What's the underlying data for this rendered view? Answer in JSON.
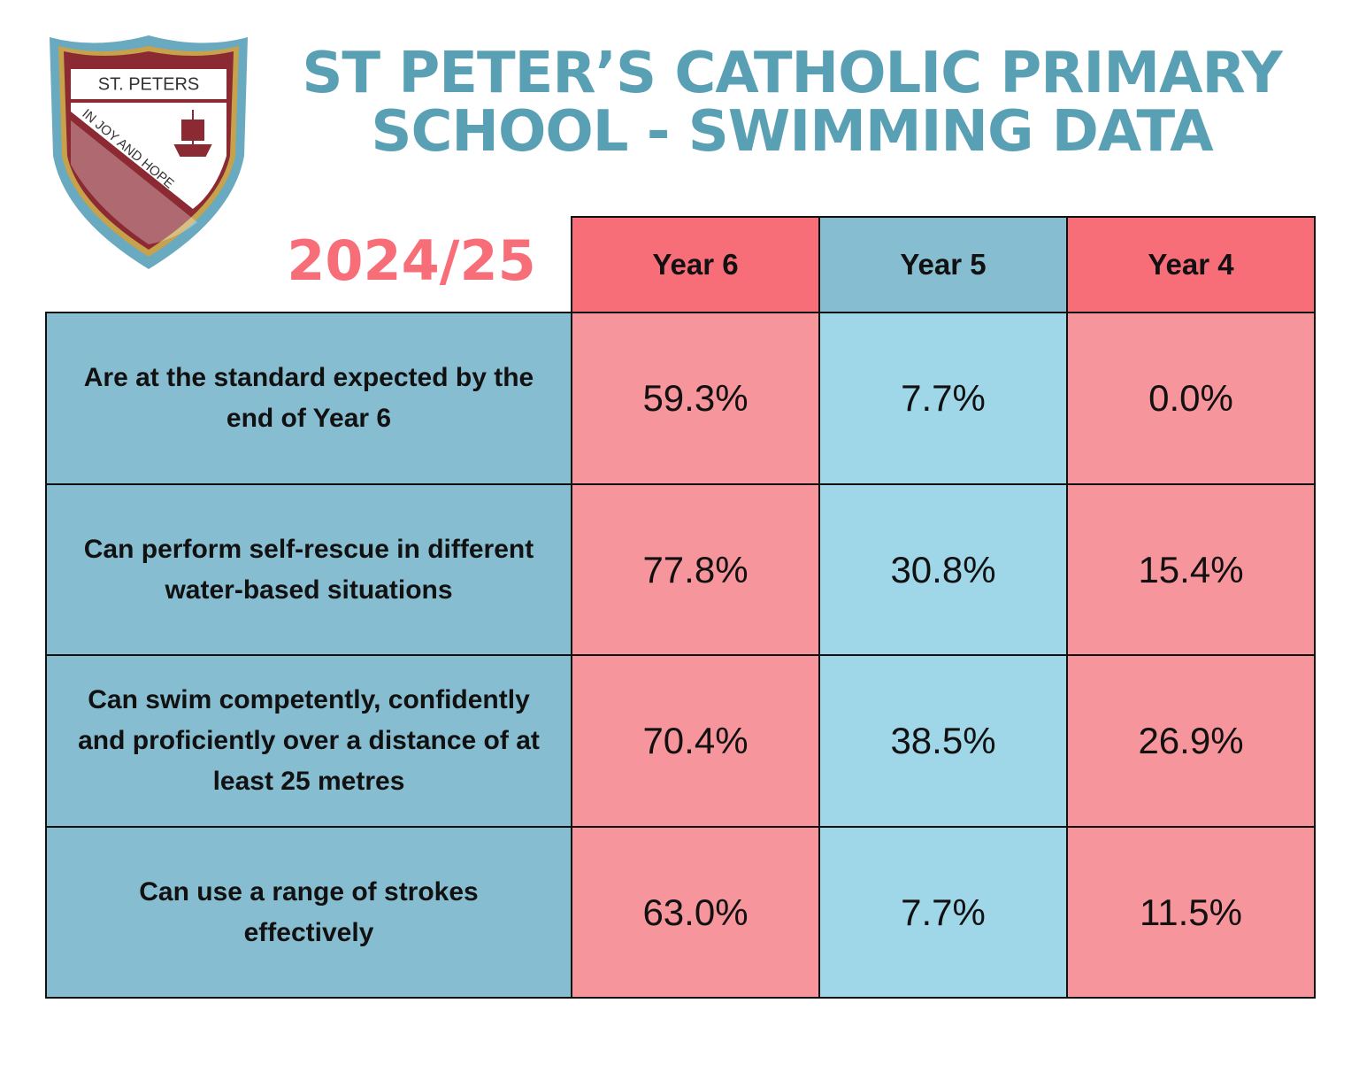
{
  "header": {
    "title_lines": [
      "ST PETER’S CATHOLIC PRIMARY",
      "SCHOOL - SWIMMING DATA"
    ],
    "year": "2024/25"
  },
  "logo": {
    "name": "ST. PETERS",
    "motto": "IN JOY AND HOPE"
  },
  "table": {
    "columns": [
      "Year 6",
      "Year 5",
      "Year 4"
    ],
    "rows": [
      {
        "label": "Are at the standard expected by the end of Year 6",
        "values": [
          "59.3%",
          "7.7%",
          "0.0%"
        ]
      },
      {
        "label": "Can perform self-rescue in different water-based situations",
        "values": [
          "77.8%",
          "30.8%",
          "15.4%"
        ]
      },
      {
        "label": "Can swim competently, confidently and proficiently over a distance of at least 25 metres",
        "values": [
          "70.4%",
          "38.5%",
          "26.9%"
        ]
      },
      {
        "label": "Can use a range of strokes effectively",
        "values": [
          "63.0%",
          "7.7%",
          "11.5%"
        ]
      }
    ]
  }
}
